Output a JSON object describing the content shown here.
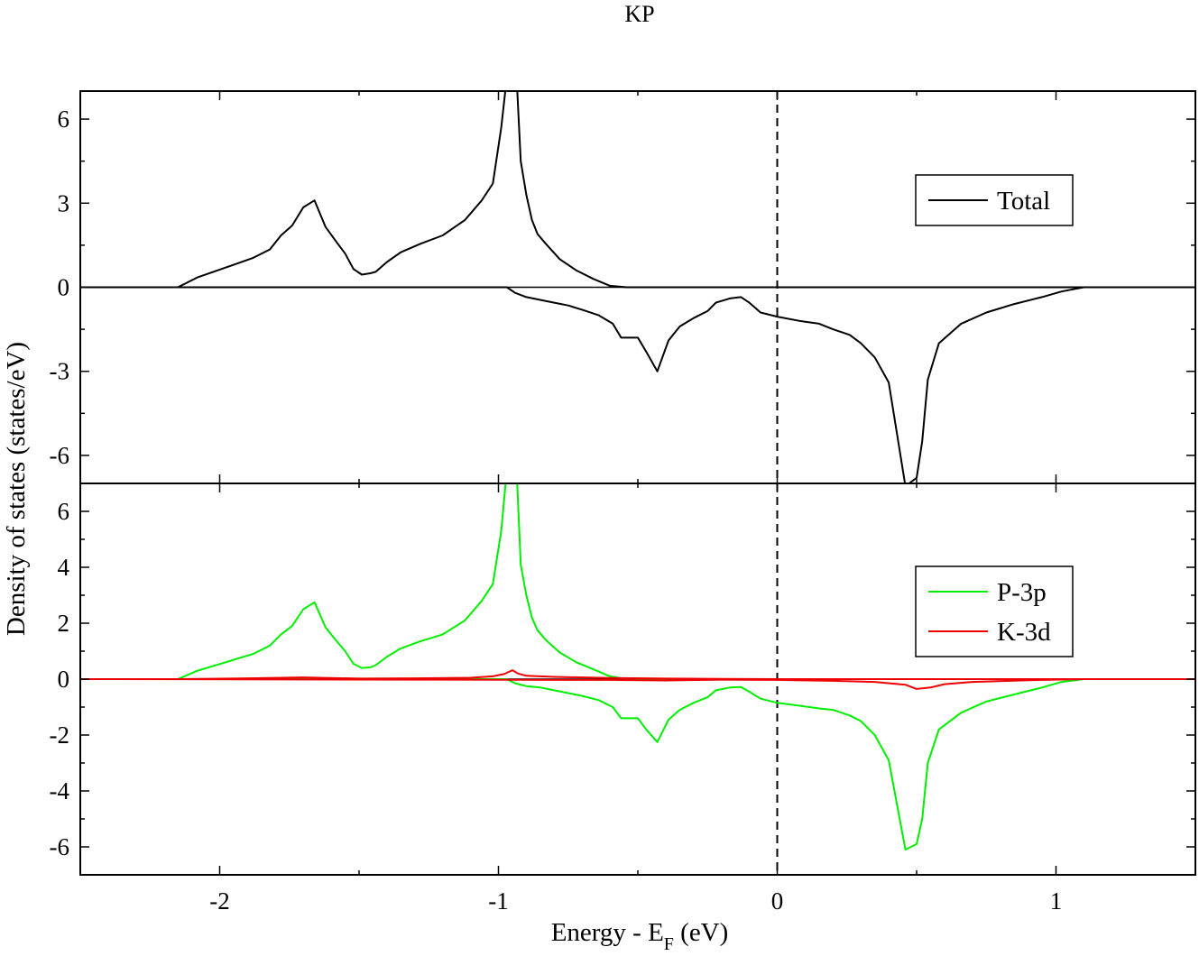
{
  "title": "KP",
  "xlabel_main": "Energy - E",
  "xlabel_sub": "F",
  "xlabel_tail": " (eV)",
  "ylabel": "Density of states (states/eV)",
  "chart_data": [
    {
      "type": "line",
      "panel": "top",
      "title": "KP",
      "xlim": [
        -2.5,
        1.5
      ],
      "ylim": [
        -7,
        7
      ],
      "xticks": [
        -2,
        -1,
        0,
        1
      ],
      "xtick_labels": [
        "-2",
        "-1",
        "0",
        "1"
      ],
      "yticks": [
        6,
        3,
        0,
        -3,
        -6
      ],
      "ytick_labels": [
        "6",
        "3",
        "0",
        "-3",
        "-6"
      ],
      "fermi_line_x": 0,
      "legend": [
        "Total"
      ],
      "series": [
        {
          "name": "Total",
          "color": "#000000",
          "show_in_legend": true,
          "x": [
            -2.5,
            -2.15,
            -2.08,
            -1.98,
            -1.88,
            -1.82,
            -1.78,
            -1.74,
            -1.7,
            -1.66,
            -1.62,
            -1.58,
            -1.55,
            -1.52,
            -1.49,
            -1.46,
            -1.44,
            -1.4,
            -1.35,
            -1.28,
            -1.2,
            -1.12,
            -1.06,
            -1.02,
            -0.99,
            -0.97,
            -0.96,
            -0.935,
            -0.92,
            -0.9,
            -0.88,
            -0.86,
            -0.83,
            -0.78,
            -0.72,
            -0.66,
            -0.6,
            -0.54,
            -0.5,
            -0.45,
            1.5
          ],
          "y": [
            0,
            0,
            0.35,
            0.7,
            1.05,
            1.35,
            1.85,
            2.2,
            2.85,
            3.1,
            2.15,
            1.6,
            1.2,
            0.65,
            0.45,
            0.5,
            0.55,
            0.9,
            1.25,
            1.55,
            1.85,
            2.4,
            3.1,
            3.7,
            5.7,
            7.5,
            7.5,
            7.5,
            4.5,
            3.3,
            2.4,
            1.9,
            1.55,
            1.0,
            0.6,
            0.3,
            0.05,
            0,
            0,
            0,
            0
          ]
        },
        {
          "name": "Total (spin down)",
          "color": "#000000",
          "show_in_legend": false,
          "x": [
            -2.5,
            -0.97,
            -0.94,
            -0.9,
            -0.85,
            -0.8,
            -0.75,
            -0.7,
            -0.64,
            -0.59,
            -0.56,
            -0.5,
            -0.47,
            -0.43,
            -0.39,
            -0.35,
            -0.3,
            -0.25,
            -0.22,
            -0.17,
            -0.13,
            -0.1,
            -0.06,
            0.0,
            0.08,
            0.15,
            0.2,
            0.26,
            0.3,
            0.35,
            0.4,
            0.46,
            0.5,
            0.52,
            0.54,
            0.58,
            0.66,
            0.75,
            0.85,
            0.95,
            1.02,
            1.1,
            1.5
          ],
          "y": [
            0,
            0,
            -0.2,
            -0.35,
            -0.45,
            -0.55,
            -0.65,
            -0.8,
            -1.0,
            -1.3,
            -1.8,
            -1.8,
            -2.3,
            -3.0,
            -1.9,
            -1.4,
            -1.1,
            -0.85,
            -0.55,
            -0.4,
            -0.35,
            -0.55,
            -0.9,
            -1.05,
            -1.2,
            -1.3,
            -1.5,
            -1.7,
            -2.0,
            -2.5,
            -3.4,
            -7.1,
            -6.8,
            -5.5,
            -3.3,
            -2.0,
            -1.3,
            -0.9,
            -0.6,
            -0.35,
            -0.15,
            0,
            0
          ]
        }
      ]
    },
    {
      "type": "line",
      "panel": "bottom",
      "xlim": [
        -2.5,
        1.5
      ],
      "ylim": [
        -7,
        7
      ],
      "xticks": [
        -2,
        -1,
        0,
        1
      ],
      "xtick_labels": [
        "-2",
        "-1",
        "0",
        "1"
      ],
      "yticks": [
        6,
        4,
        2,
        0,
        -2,
        -4,
        -6
      ],
      "ytick_labels": [
        "6",
        "4",
        "2",
        "0",
        "-2",
        "-4",
        "-6"
      ],
      "fermi_line_x": 0,
      "legend": [
        "P-3p",
        "K-3d"
      ],
      "series": [
        {
          "name": "P-3p",
          "color": "#00ee00",
          "show_in_legend": true,
          "x": [
            -2.5,
            -2.15,
            -2.08,
            -1.98,
            -1.88,
            -1.82,
            -1.78,
            -1.74,
            -1.7,
            -1.66,
            -1.62,
            -1.58,
            -1.55,
            -1.52,
            -1.49,
            -1.46,
            -1.44,
            -1.4,
            -1.35,
            -1.28,
            -1.2,
            -1.12,
            -1.06,
            -1.02,
            -0.99,
            -0.97,
            -0.96,
            -0.935,
            -0.92,
            -0.9,
            -0.88,
            -0.86,
            -0.83,
            -0.78,
            -0.72,
            -0.66,
            -0.6,
            -0.54,
            -0.5,
            -0.45,
            1.5
          ],
          "y": [
            0,
            0,
            0.3,
            0.6,
            0.9,
            1.2,
            1.6,
            1.9,
            2.5,
            2.75,
            1.85,
            1.35,
            1.0,
            0.55,
            0.4,
            0.42,
            0.5,
            0.8,
            1.1,
            1.35,
            1.6,
            2.1,
            2.8,
            3.4,
            5.3,
            7.5,
            7.5,
            7.5,
            4.1,
            3.0,
            2.2,
            1.75,
            1.4,
            0.95,
            0.6,
            0.35,
            0.1,
            0,
            0,
            0,
            0
          ]
        },
        {
          "name": "P-3p (spin down)",
          "color": "#00ee00",
          "show_in_legend": false,
          "x": [
            -2.5,
            -0.97,
            -0.94,
            -0.9,
            -0.85,
            -0.8,
            -0.75,
            -0.7,
            -0.64,
            -0.59,
            -0.56,
            -0.5,
            -0.47,
            -0.43,
            -0.39,
            -0.35,
            -0.3,
            -0.25,
            -0.22,
            -0.17,
            -0.13,
            -0.1,
            -0.06,
            0.0,
            0.08,
            0.15,
            0.2,
            0.26,
            0.3,
            0.35,
            0.4,
            0.46,
            0.5,
            0.52,
            0.54,
            0.58,
            0.66,
            0.75,
            0.85,
            0.95,
            1.02,
            1.1,
            1.5
          ],
          "y": [
            0,
            0,
            -0.15,
            -0.25,
            -0.3,
            -0.4,
            -0.5,
            -0.6,
            -0.75,
            -1.0,
            -1.4,
            -1.4,
            -1.8,
            -2.25,
            -1.45,
            -1.1,
            -0.85,
            -0.65,
            -0.4,
            -0.3,
            -0.28,
            -0.45,
            -0.7,
            -0.85,
            -0.95,
            -1.05,
            -1.1,
            -1.3,
            -1.5,
            -2.0,
            -2.9,
            -6.1,
            -5.9,
            -5.0,
            -3.0,
            -1.8,
            -1.2,
            -0.8,
            -0.55,
            -0.3,
            -0.1,
            0,
            0
          ]
        },
        {
          "name": "K-3d",
          "color": "#ee0000",
          "show_in_legend": true,
          "x": [
            -2.5,
            -2.15,
            -1.9,
            -1.7,
            -1.5,
            -1.3,
            -1.1,
            -1.02,
            -0.98,
            -0.95,
            -0.93,
            -0.9,
            -0.8,
            -0.6,
            -0.4,
            -0.2,
            0.0,
            0.2,
            0.4,
            1.5
          ],
          "y": [
            0,
            0,
            0.03,
            0.06,
            0.02,
            0.03,
            0.05,
            0.1,
            0.18,
            0.32,
            0.2,
            0.12,
            0.08,
            0.04,
            0.02,
            0.01,
            0,
            0,
            0,
            0
          ]
        },
        {
          "name": "K-3d (spin down)",
          "color": "#ee0000",
          "show_in_legend": false,
          "x": [
            -2.5,
            -0.6,
            -0.4,
            -0.2,
            0.0,
            0.2,
            0.35,
            0.46,
            0.5,
            0.55,
            0.6,
            0.7,
            0.9,
            1.1,
            1.5
          ],
          "y": [
            0,
            -0.03,
            -0.05,
            -0.02,
            -0.03,
            -0.06,
            -0.1,
            -0.2,
            -0.35,
            -0.3,
            -0.18,
            -0.1,
            -0.04,
            0,
            0
          ]
        }
      ]
    }
  ]
}
